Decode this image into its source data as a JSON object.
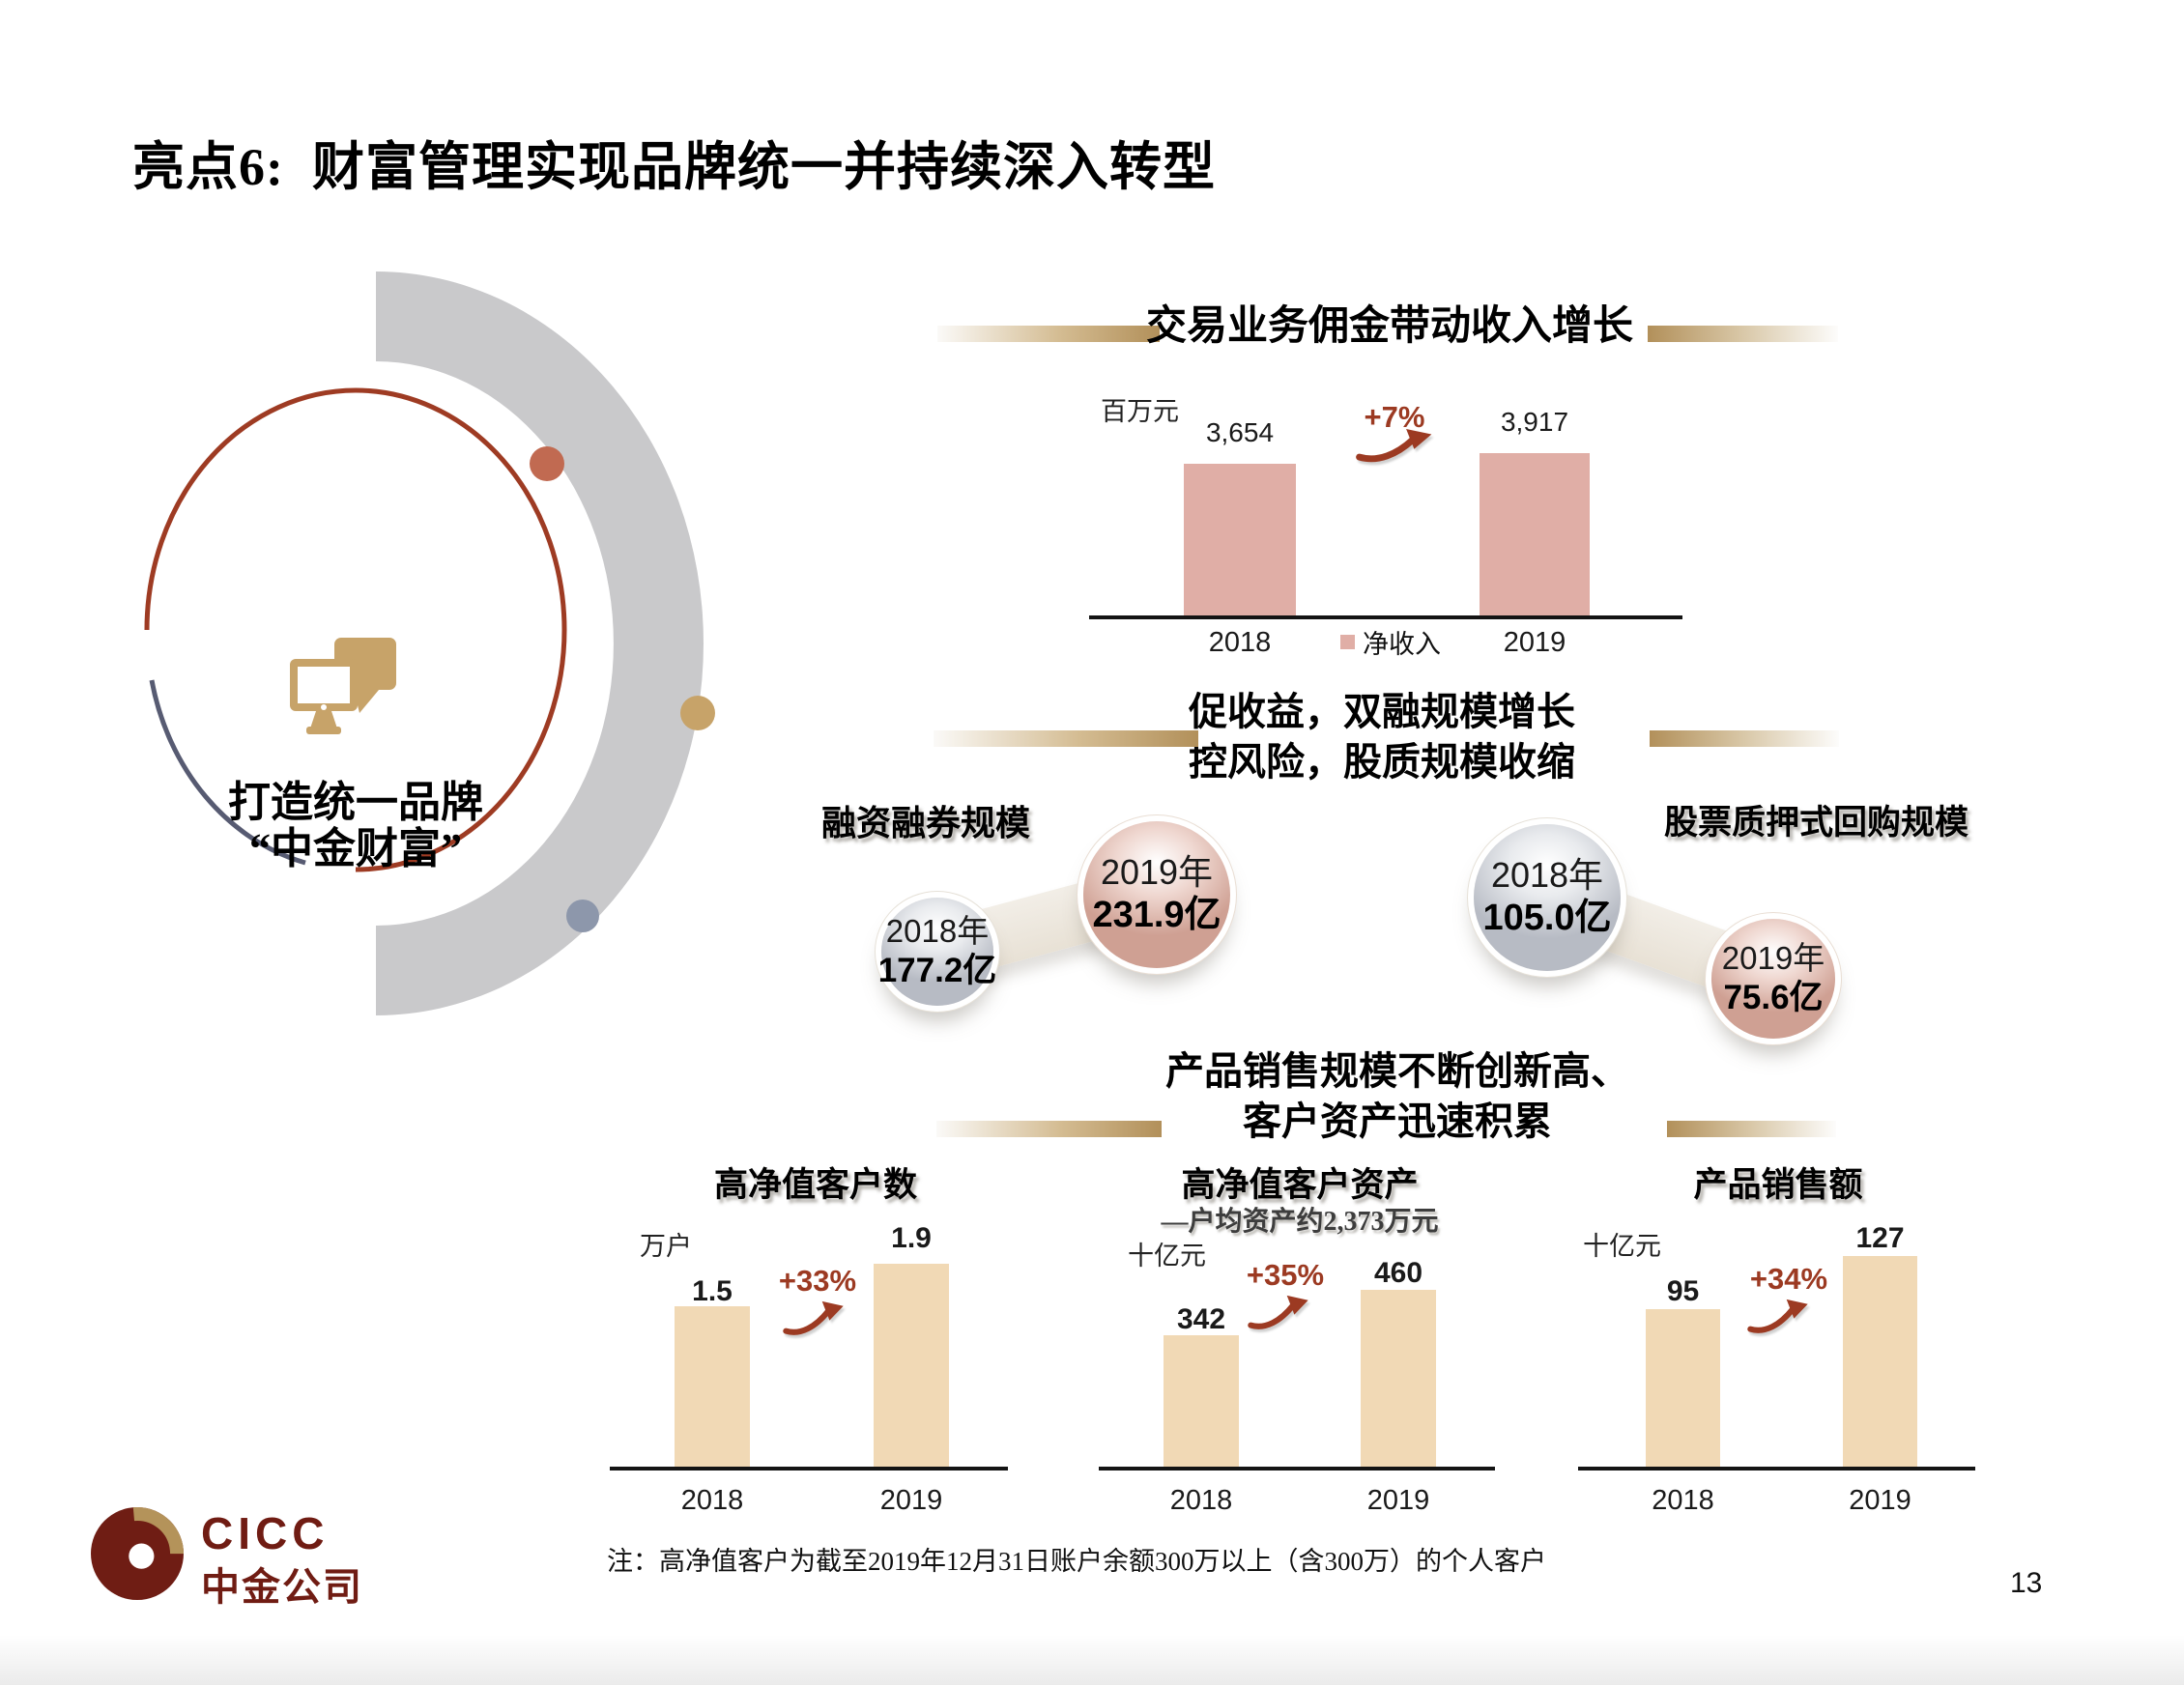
{
  "slide": {
    "title": "亮点6:  财富管理实现品牌统一并持续深入转型",
    "footnote": "注：高净值客户为截至2019年12月31日账户余额300万以上（含300万）的个人客户",
    "page_number": "13"
  },
  "brand": {
    "logo_text": "CICC",
    "logo_cn": "中金公司",
    "circle_line1": "打造统一品牌",
    "circle_line2": "“中金财富”"
  },
  "section_headers": {
    "middle_line1": "促收益，双融规模增长",
    "middle_line2": "控风险，股质规模收缩",
    "bottom_line1": "产品销售规模不断创新高、",
    "bottom_line2": "客户资产迅速积累"
  },
  "chart_data": [
    {
      "id": "commission-income",
      "type": "bar",
      "title": "交易业务佣金带动收入增长",
      "unit": "百万元",
      "categories": [
        "2018",
        "2019"
      ],
      "values": [
        3654,
        3917
      ],
      "value_labels": [
        "3,654",
        "3,917"
      ],
      "growth_label": "+7%",
      "legend": [
        "净收入"
      ],
      "bar_color": "#E0AEA6",
      "ylim": [
        0,
        4000
      ]
    },
    {
      "id": "margin-financing-scale",
      "type": "bubble",
      "title": "融资融券规模",
      "unit": "亿",
      "items": [
        {
          "year": "2018年",
          "value": 177.2,
          "value_label": "177.2亿",
          "color": "gray"
        },
        {
          "year": "2019年",
          "value": 231.9,
          "value_label": "231.9亿",
          "color": "pink"
        }
      ]
    },
    {
      "id": "stock-pledge-repo-scale",
      "type": "bubble",
      "title": "股票质押式回购规模",
      "unit": "亿",
      "items": [
        {
          "year": "2018年",
          "value": 105.0,
          "value_label": "105.0亿",
          "color": "gray"
        },
        {
          "year": "2019年",
          "value": 75.6,
          "value_label": "75.6亿",
          "color": "pink"
        }
      ]
    },
    {
      "id": "hnw-client-count",
      "type": "bar",
      "title": "高净值客户数",
      "unit": "万户",
      "categories": [
        "2018",
        "2019"
      ],
      "values": [
        1.5,
        1.9
      ],
      "value_labels": [
        "1.5",
        "1.9"
      ],
      "growth_label": "+33%",
      "bar_color": "#F1D9B5",
      "ylim": [
        0,
        2
      ]
    },
    {
      "id": "hnw-client-assets",
      "type": "bar",
      "title": "高净值客户资产",
      "subtitle": "—户均资产约2,373万元",
      "unit": "十亿元",
      "categories": [
        "2018",
        "2019"
      ],
      "values": [
        342,
        460
      ],
      "value_labels": [
        "342",
        "460"
      ],
      "growth_label": "+35%",
      "bar_color": "#F1D9B5",
      "ylim": [
        0,
        500
      ]
    },
    {
      "id": "product-sales",
      "type": "bar",
      "title": "产品销售额",
      "unit": "十亿元",
      "categories": [
        "2018",
        "2019"
      ],
      "values": [
        95,
        127
      ],
      "value_labels": [
        "95",
        "127"
      ],
      "growth_label": "+34%",
      "bar_color": "#F1D9B5",
      "ylim": [
        0,
        140
      ]
    }
  ],
  "colors": {
    "rose_bar": "#E0AEA6",
    "tan_bar": "#F1D9B5",
    "growth_red": "#9C3A22",
    "gold": "#B2905A",
    "arc_gray": "#C9C9CB",
    "dot_red": "#C16A51",
    "dot_gold": "#C7A369",
    "dot_blue": "#8D97AB",
    "ring_red": "#9E3B23",
    "ring_blue": "#575B72",
    "maroon": "#701C13"
  }
}
